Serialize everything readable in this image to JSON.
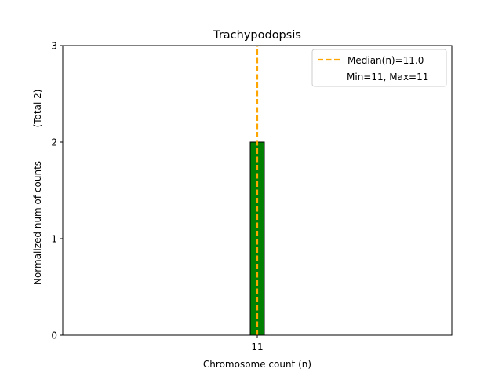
{
  "chart_data": {
    "type": "bar",
    "title": "Trachypodopsis",
    "xlabel": "Chromosome count (n)",
    "ylabel": "Normalized num of counts",
    "ylabel_note": "(Total 2)",
    "categories": [
      "11"
    ],
    "x": [
      11
    ],
    "values": [
      2
    ],
    "bar_width": 1,
    "xlim": [
      -2.8,
      24.8
    ],
    "ylim": [
      0,
      3
    ],
    "yticks": [
      "0",
      "1",
      "2",
      "3"
    ],
    "xticks": [
      "11"
    ],
    "grid": false,
    "median": 11.0,
    "legend": {
      "placement": "top-right",
      "entries": [
        "Median(n)=11.0",
        "Min=11, Max=11"
      ]
    },
    "colors": {
      "bar": "#008000",
      "bar_edge": "#000000",
      "median": "#FFA500"
    }
  }
}
